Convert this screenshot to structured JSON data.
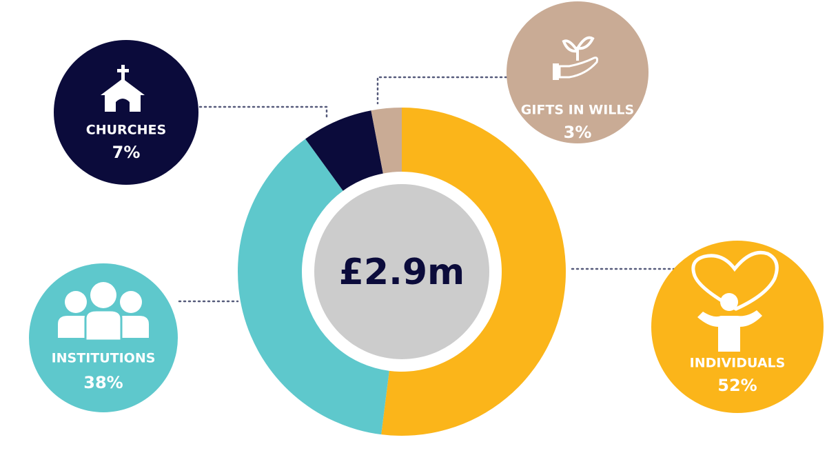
{
  "chart_data": {
    "type": "pie",
    "donut": true,
    "center_label": "£2.9m",
    "categories": [
      "INDIVIDUALS",
      "INSTITUTIONS",
      "CHURCHES",
      "GIFTS IN WILLS"
    ],
    "values": [
      52,
      38,
      7,
      3
    ],
    "value_labels": [
      "52%",
      "38%",
      "7%",
      "3%"
    ],
    "colors": [
      "#fbb51a",
      "#5ec8cc",
      "#0b0b3b",
      "#c9ab95"
    ]
  }
}
